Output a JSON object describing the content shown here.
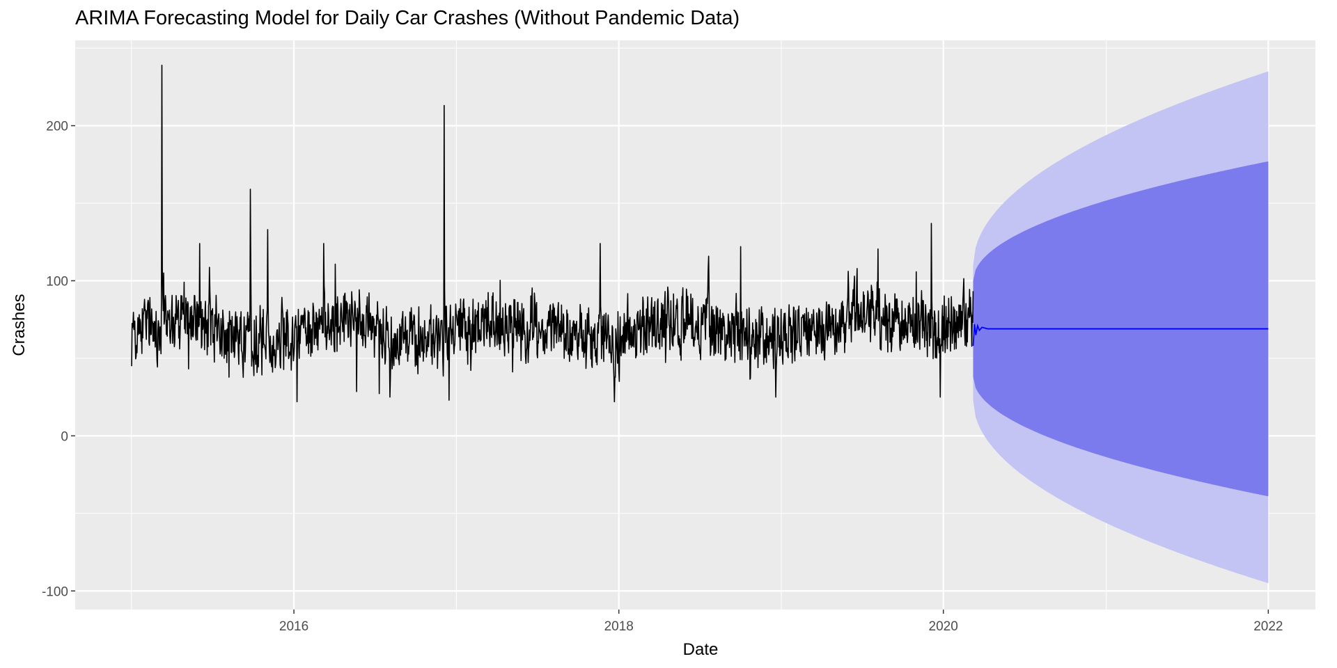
{
  "chart_data": {
    "type": "line",
    "title": "ARIMA Forecasting Model for Daily Car Crashes (Without Pandemic Data)",
    "xlabel": "Date",
    "ylabel": "Crashes",
    "xlim": [
      "2014-08-27",
      "2022-04-17"
    ],
    "ylim": [
      -112,
      255
    ],
    "x_ticks": [
      {
        "date": "2016-01-01",
        "label": "2016"
      },
      {
        "date": "2018-01-01",
        "label": "2018"
      },
      {
        "date": "2020-01-01",
        "label": "2020"
      },
      {
        "date": "2022-01-01",
        "label": "2022"
      }
    ],
    "y_ticks": [
      {
        "value": -100,
        "label": "-100"
      },
      {
        "value": 0,
        "label": "0"
      },
      {
        "value": 100,
        "label": "100"
      },
      {
        "value": 200,
        "label": "200"
      }
    ],
    "grid": true,
    "background": "#ebebeb",
    "colors": {
      "observed": "#000000",
      "forecast": "#0000ff",
      "band_80": "#7b7bed",
      "band_95": "#c3c3f4",
      "grid": "#ffffff"
    },
    "series": [
      {
        "kind": "observed",
        "x_start": "2015-01-01",
        "x_end": "2020-03-08",
        "mean_level": 68,
        "typical_range": [
          25,
          125
        ],
        "peaks": [
          {
            "x": "2015-03-10",
            "y": 239
          },
          {
            "x": "2015-03-14",
            "y": 105
          },
          {
            "x": "2015-06-03",
            "y": 124
          },
          {
            "x": "2015-09-25",
            "y": 159
          },
          {
            "x": "2015-11-03",
            "y": 133
          },
          {
            "x": "2016-01-08",
            "y": 22
          },
          {
            "x": "2016-03-08",
            "y": 124
          },
          {
            "x": "2016-12-04",
            "y": 213
          },
          {
            "x": "2016-12-15",
            "y": 23
          },
          {
            "x": "2017-11-20",
            "y": 124
          },
          {
            "x": "2017-12-22",
            "y": 22
          },
          {
            "x": "2018-10-02",
            "y": 122
          },
          {
            "x": "2019-12-05",
            "y": 137
          },
          {
            "x": "2019-12-25",
            "y": 25
          }
        ]
      },
      {
        "kind": "forecast",
        "x_start": "2020-03-08",
        "x_end": "2022-01-01",
        "mean": 69,
        "startup_wiggle": [
          {
            "x": "2020-03-08",
            "y": 58
          },
          {
            "x": "2020-03-11",
            "y": 72
          },
          {
            "x": "2020-03-14",
            "y": 65
          },
          {
            "x": "2020-03-18",
            "y": 71
          },
          {
            "x": "2020-03-22",
            "y": 68
          },
          {
            "x": "2020-03-28",
            "y": 70
          },
          {
            "x": "2020-04-10",
            "y": 69
          }
        ],
        "band_80": {
          "start": [
            38,
            100
          ],
          "end": [
            -39,
            177
          ]
        },
        "band_95": {
          "start": [
            23,
            110
          ],
          "end": [
            -95,
            235
          ]
        }
      }
    ]
  }
}
